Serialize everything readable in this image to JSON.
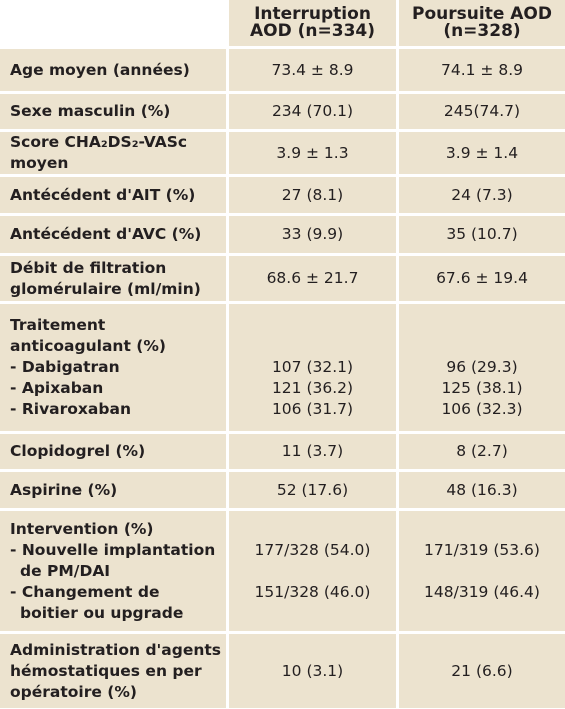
{
  "table": {
    "header": [
      [
        "Interruption",
        "AOD (n=334)"
      ],
      [
        "Poursuite AOD",
        "(n=328)"
      ]
    ],
    "rows": [
      {
        "label": [
          "Age moyen (années)"
        ],
        "values": [
          [
            "73.4 ± 8.9"
          ],
          [
            "74.1 ± 8.9"
          ]
        ]
      },
      {
        "label": [
          "Sexe masculin (%)"
        ],
        "values": [
          [
            "234 (70.1)"
          ],
          [
            "245(74.7)"
          ]
        ]
      },
      {
        "label": [
          "Score CHA₂DS₂-VASc",
          "moyen"
        ],
        "values": [
          [
            "3.9 ± 1.3"
          ],
          [
            "3.9 ± 1.4"
          ]
        ]
      },
      {
        "label": [
          "Antécédent d'AIT (%)"
        ],
        "values": [
          [
            "27 (8.1)"
          ],
          [
            "24 (7.3)"
          ]
        ]
      },
      {
        "label": [
          "Antécédent d'AVC (%)"
        ],
        "values": [
          [
            "33 (9.9)"
          ],
          [
            "35 (10.7)"
          ]
        ]
      },
      {
        "label": [
          "Débit de filtration",
          "glomérulaire (ml/min)"
        ],
        "values": [
          [
            "68.6 ± 21.7"
          ],
          [
            "67.6 ± 19.4"
          ]
        ]
      },
      {
        "label": [
          "Traitement",
          "anticoagulant (%)",
          "- Dabigatran",
          "- Apixaban",
          "- Rivaroxaban"
        ],
        "values": [
          [
            "107 (32.1)",
            "121 (36.2)",
            "106 (31.7)"
          ],
          [
            "96 (29.3)",
            "125 (38.1)",
            "106 (32.3)"
          ]
        ]
      },
      {
        "label": [
          "Clopidogrel (%)"
        ],
        "values": [
          [
            "11 (3.7)"
          ],
          [
            "8 (2.7)"
          ]
        ]
      },
      {
        "label": [
          "Aspirine (%)"
        ],
        "values": [
          [
            "52 (17.6)"
          ],
          [
            "48 (16.3)"
          ]
        ]
      },
      {
        "label": [
          "Intervention (%)",
          "- Nouvelle implantation",
          "de PM/DAI",
          "- Changement de",
          "boitier ou upgrade"
        ],
        "values": [
          [
            "177/328 (54.0)",
            "151/328 (46.0)"
          ],
          [
            "171/319 (53.6)",
            "148/319 (46.4)"
          ]
        ]
      },
      {
        "label": [
          "Administration d'agents",
          "hémostatiques en per",
          "opératoire (%)"
        ],
        "values": [
          [
            "10 (3.1)"
          ],
          [
            "21 (6.6)"
          ]
        ]
      }
    ]
  }
}
